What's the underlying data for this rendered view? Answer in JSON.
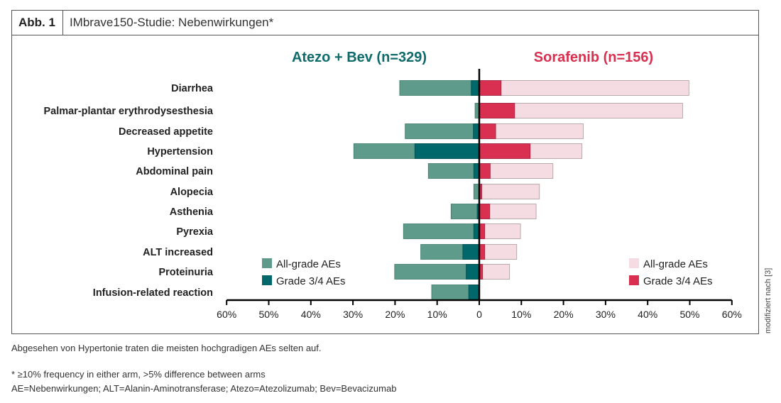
{
  "figure": {
    "label": "Abb. 1",
    "title": "IMbrave150-Studie: Nebenwirkungen*"
  },
  "colors": {
    "atezo_all": "#5e9b8b",
    "atezo_g34": "#00676a",
    "sora_all": "#f5dce3",
    "sora_g34": "#d93052",
    "atezo_title": "#0f6b6b",
    "sora_title": "#d9304f"
  },
  "chart_data": {
    "type": "bar",
    "orientation": "horizontal-diverging",
    "title_left": "Atezo + Bev (n=329)",
    "title_right": "Sorafenib (n=156)",
    "categories": [
      "Diarrhea",
      "Palmar-plantar erythrodysesthesia",
      "Decreased appetite",
      "Hypertension",
      "Abdominal pain",
      "Alopecia",
      "Asthenia",
      "Pyrexia",
      "ALT increased",
      "Proteinuria",
      "Infusion-related reaction"
    ],
    "series": [
      {
        "name": "Atezo + Bev All-grade AEs",
        "values": [
          18.9,
          1.0,
          17.6,
          29.8,
          12.1,
          1.3,
          6.7,
          18.0,
          13.9,
          20.1,
          11.3
        ]
      },
      {
        "name": "Atezo + Bev Grade 3/4 AEs",
        "values": [
          1.9,
          0.0,
          1.4,
          15.3,
          1.3,
          0.0,
          0.5,
          1.3,
          3.9,
          3.1,
          2.5
        ]
      },
      {
        "name": "Sorafenib All-grade AEs",
        "values": [
          49.8,
          48.3,
          24.7,
          24.4,
          17.5,
          14.3,
          13.5,
          9.8,
          8.9,
          7.2,
          0
        ]
      },
      {
        "name": "Sorafenib Grade 3/4 AEs",
        "values": [
          5.2,
          8.4,
          3.9,
          12.1,
          2.6,
          0.6,
          2.5,
          1.3,
          1.3,
          0.8,
          0
        ]
      }
    ],
    "xlim": [
      -60,
      60
    ],
    "ticks": [
      "60%",
      "50%",
      "40%",
      "30%",
      "20%",
      "10%",
      "0",
      "10%",
      "20%",
      "30%",
      "40%",
      "50%",
      "60%"
    ],
    "legend_left": [
      "All-grade AEs",
      "Grade 3/4 AEs"
    ],
    "legend_right": [
      "All-grade AEs",
      "Grade 3/4 AEs"
    ]
  },
  "notes": {
    "summary": "Abgesehen von Hypertonie traten die meisten hochgradigen AEs selten auf.",
    "footnote": "* ≥10% frequency in either arm, >5% difference between arms",
    "abbreviations": "AE=Nebenwirkungen; ALT=Alanin-Aminotransferase; Atezo=Atezolizumab; Bev=Bevacizumab",
    "source": "modifiziert nach [3]"
  }
}
